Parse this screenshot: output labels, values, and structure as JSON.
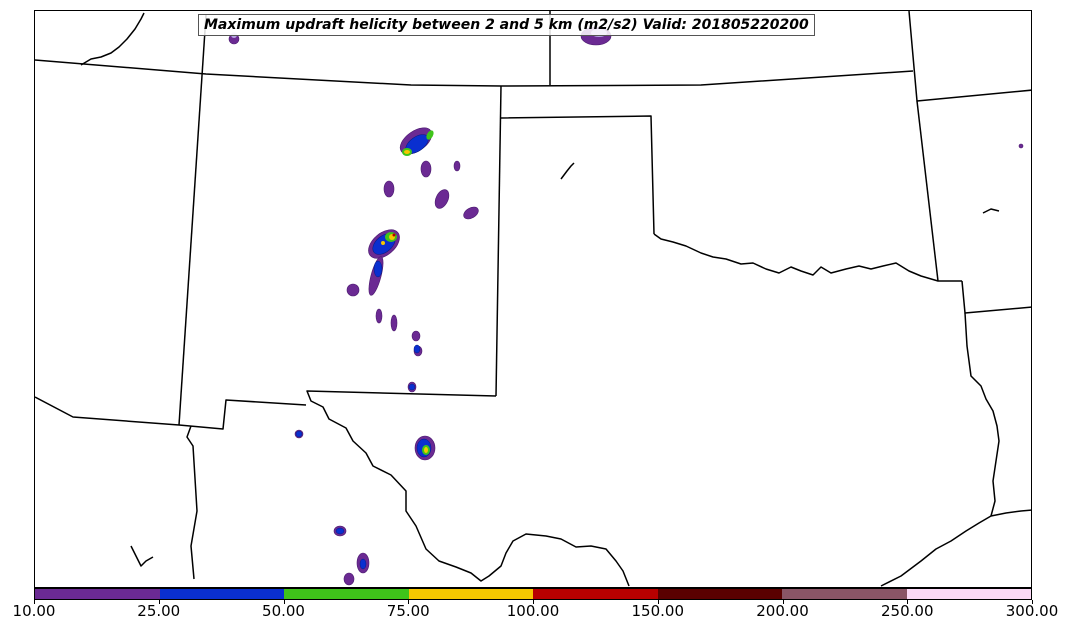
{
  "title": "Maximum updraft helicity between 2 and 5 km (m2/s2) Valid: 201805220200",
  "colorbar": {
    "labels": [
      "10.00",
      "25.00",
      "50.00",
      "75.00",
      "100.00",
      "150.00",
      "200.00",
      "250.00",
      "300.00"
    ],
    "colors": [
      "#6b2a93",
      "#0a2fd0",
      "#3fc41a",
      "#f6c800",
      "#b80000",
      "#5a0000",
      "#8a5566",
      "#fbd9f6"
    ]
  },
  "legend_colors": {
    "level_10": "#6b2a93",
    "level_25": "#0a2fd0",
    "level_50": "#3fc41a",
    "level_75": "#f6c800",
    "level_100": "#b80000"
  }
}
